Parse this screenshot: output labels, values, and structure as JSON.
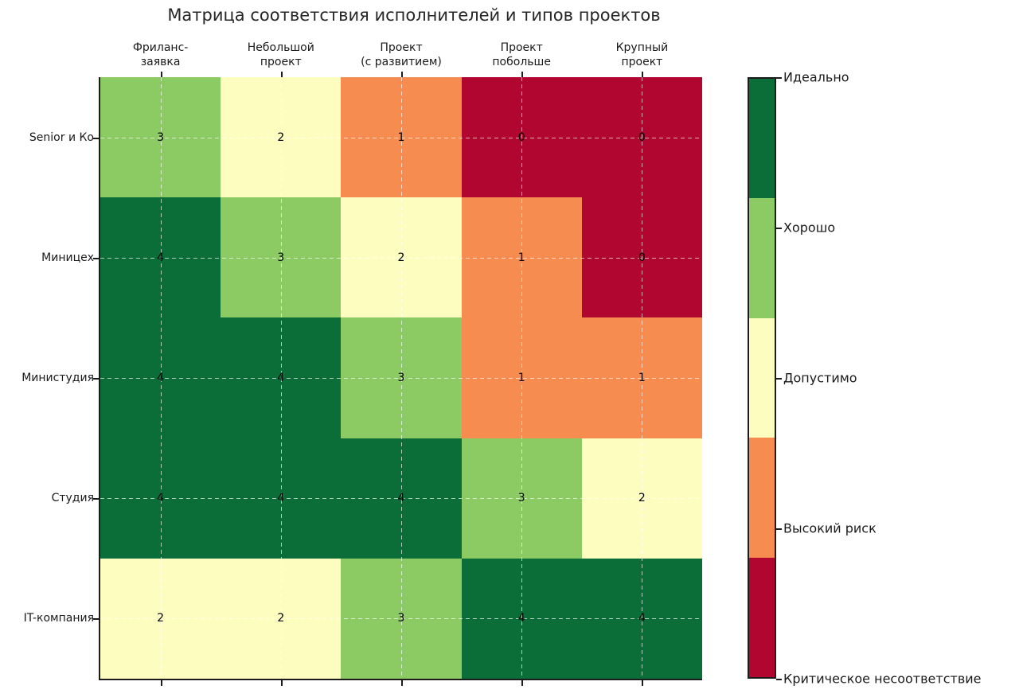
{
  "title": "Матрица соответствия исполнителей и типов проектов",
  "chart_data": {
    "type": "heatmap",
    "title": "Матрица соответствия исполнителей и типов проектов",
    "x_categories": [
      [
        "Фриланс-",
        "заявка"
      ],
      [
        "Небольшой",
        "проект"
      ],
      [
        "Проект",
        "(с развитием)"
      ],
      [
        "Проект",
        "побольше"
      ],
      [
        "Крупный",
        "проект"
      ]
    ],
    "y_categories": [
      "Senior и Ко",
      "Миницех",
      "Министудия",
      "Студия",
      "IT-компания"
    ],
    "values": [
      [
        3,
        2,
        1,
        0,
        0
      ],
      [
        4,
        3,
        2,
        1,
        0
      ],
      [
        4,
        4,
        3,
        1,
        1
      ],
      [
        4,
        4,
        4,
        3,
        2
      ],
      [
        2,
        2,
        3,
        4,
        4
      ]
    ],
    "value_range": [
      0,
      4
    ],
    "value_colors": {
      "0": "#b00630",
      "1": "#f78c50",
      "2": "#fdfdc0",
      "3": "#8cca64",
      "4": "#0b6e38"
    },
    "cell_annotations_shown": true,
    "grid": {
      "style": "dashed",
      "color": "rgba(255,255,255,0.65)",
      "at": "cell-centers"
    },
    "colorbar": {
      "segments_top_to_bottom": [
        4,
        3,
        2,
        1,
        0
      ],
      "labels_top_to_bottom": [
        "Идеально",
        "Хорошо",
        "Допустимо",
        "Высокий риск",
        "Критическое несоответствие"
      ],
      "position": "right"
    }
  }
}
